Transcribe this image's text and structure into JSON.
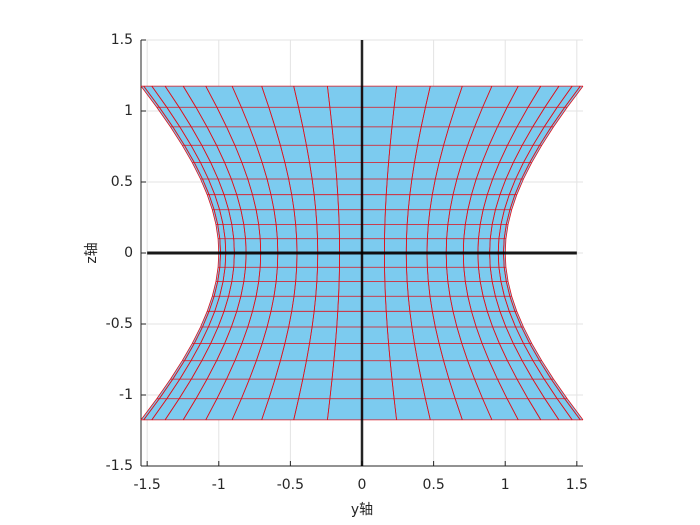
{
  "chart_data": {
    "type": "surface",
    "xlabel": "y轴",
    "ylabel": "z轴",
    "u": [
      -1,
      -0.9,
      -0.8,
      -0.7,
      -0.6,
      -0.5,
      -0.4,
      -0.3,
      -0.2,
      -0.1,
      0,
      0.1,
      0.2,
      0.3,
      0.4,
      0.5,
      0.6,
      0.7,
      0.8,
      0.9,
      1
    ],
    "v": [
      0,
      9,
      18,
      27,
      36,
      45,
      54,
      63,
      72,
      81,
      90,
      99,
      108,
      117,
      126,
      135,
      144,
      153,
      162,
      171,
      180,
      189,
      198,
      207,
      216,
      225,
      234,
      243,
      252,
      261,
      270,
      279,
      288,
      297,
      306,
      315,
      324,
      333,
      342,
      351,
      360
    ],
    "color": "#7ccbef",
    "edge_color": "#e0101a",
    "xlim": [
      -1.5431,
      1.5431
    ],
    "ylim": [
      -1.5,
      1.5
    ],
    "xticks": [
      -1.5,
      -1,
      -0.5,
      0,
      0.5,
      1,
      1.5
    ],
    "yticks": [
      -1.5,
      -1,
      -0.5,
      0,
      0.5,
      1,
      1.5
    ],
    "grid": true
  }
}
